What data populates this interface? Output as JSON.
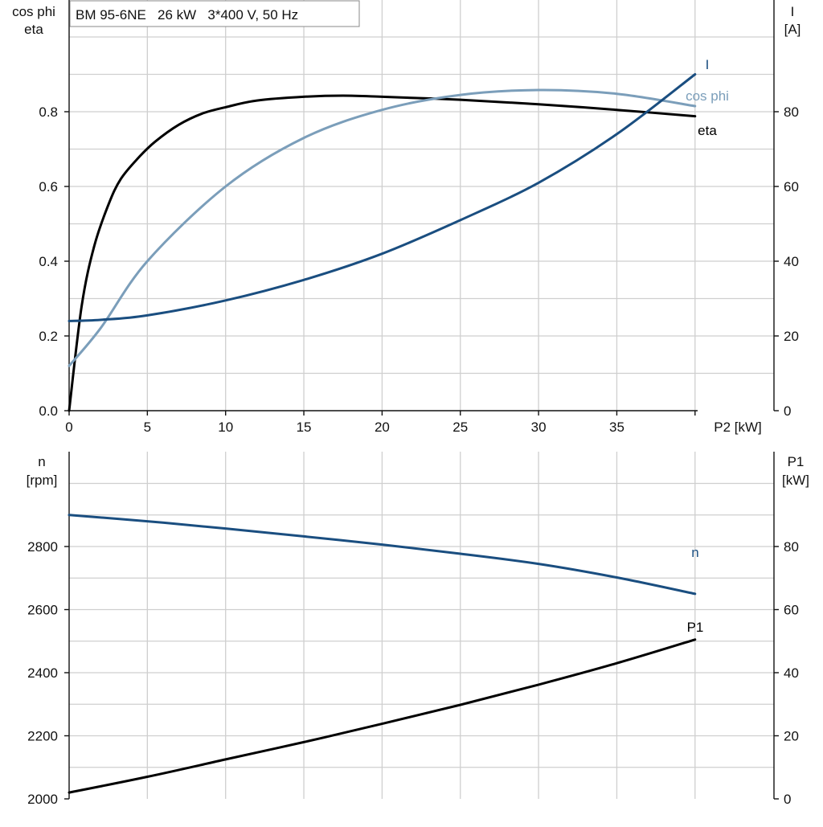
{
  "chart_data": [
    {
      "type": "line",
      "title": "BM 95-6NE   26 kW   3*400 V, 50 Hz",
      "xlabel": "P2 [kW]",
      "xlim": [
        0,
        45
      ],
      "xticks": [
        0,
        5,
        10,
        15,
        20,
        25,
        30,
        35
      ],
      "ylabel_left": [
        "cos phi",
        "eta"
      ],
      "ylim_left": [
        0,
        1.0
      ],
      "yticks_left": [
        "0.0",
        "0.2",
        "0.4",
        "0.6",
        "0.8"
      ],
      "ylabel_right": [
        "I",
        "[A]"
      ],
      "ylim_right": [
        0,
        100
      ],
      "yticks_right": [
        "0",
        "20",
        "40",
        "60",
        "80"
      ],
      "grid": true,
      "series": [
        {
          "name": "eta",
          "axis": "left",
          "color": "#000000",
          "x": [
            0,
            0.8,
            1.6,
            2.5,
            3.3,
            4.5,
            5.5,
            7,
            8.5,
            10,
            12,
            15,
            17.5,
            20,
            25,
            30,
            35,
            40
          ],
          "y": [
            0,
            0.28,
            0.44,
            0.55,
            0.62,
            0.68,
            0.72,
            0.765,
            0.795,
            0.812,
            0.83,
            0.84,
            0.843,
            0.84,
            0.832,
            0.82,
            0.805,
            0.788
          ]
        },
        {
          "name": "cos phi",
          "axis": "left",
          "color": "#7b9eba",
          "x": [
            0,
            2,
            5,
            10,
            15,
            20,
            25,
            30,
            35,
            40
          ],
          "y": [
            0.12,
            0.22,
            0.4,
            0.6,
            0.73,
            0.805,
            0.845,
            0.858,
            0.848,
            0.815
          ]
        },
        {
          "name": "I",
          "axis": "right",
          "color": "#1a4e80",
          "x": [
            0,
            2,
            5,
            10,
            15,
            20,
            25,
            30,
            35,
            40
          ],
          "y": [
            24,
            24.3,
            25.5,
            29.5,
            35,
            42,
            51,
            61,
            74,
            90
          ]
        }
      ]
    },
    {
      "type": "line",
      "xlim": [
        0,
        45
      ],
      "ylabel_left": [
        "n",
        "[rpm]"
      ],
      "ylim_left": [
        2000,
        3000
      ],
      "yticks_left": [
        "2000",
        "2200",
        "2400",
        "2600",
        "2800"
      ],
      "ylabel_right": [
        "P1",
        "[kW]"
      ],
      "ylim_right": [
        0,
        100
      ],
      "yticks_right": [
        "0",
        "20",
        "40",
        "60",
        "80"
      ],
      "grid": true,
      "series": [
        {
          "name": "n",
          "axis": "left",
          "color": "#1a4e80",
          "x": [
            0,
            5,
            10,
            15,
            20,
            25,
            30,
            35,
            40
          ],
          "y": [
            2900,
            2880,
            2857,
            2832,
            2806,
            2777,
            2745,
            2702,
            2650
          ]
        },
        {
          "name": "P1",
          "axis": "right",
          "color": "#000000",
          "x": [
            0,
            5,
            10,
            15,
            20,
            25,
            30,
            35,
            40
          ],
          "y": [
            2,
            7,
            12.5,
            18,
            23.8,
            29.8,
            36.2,
            43,
            50.5
          ]
        }
      ]
    }
  ]
}
